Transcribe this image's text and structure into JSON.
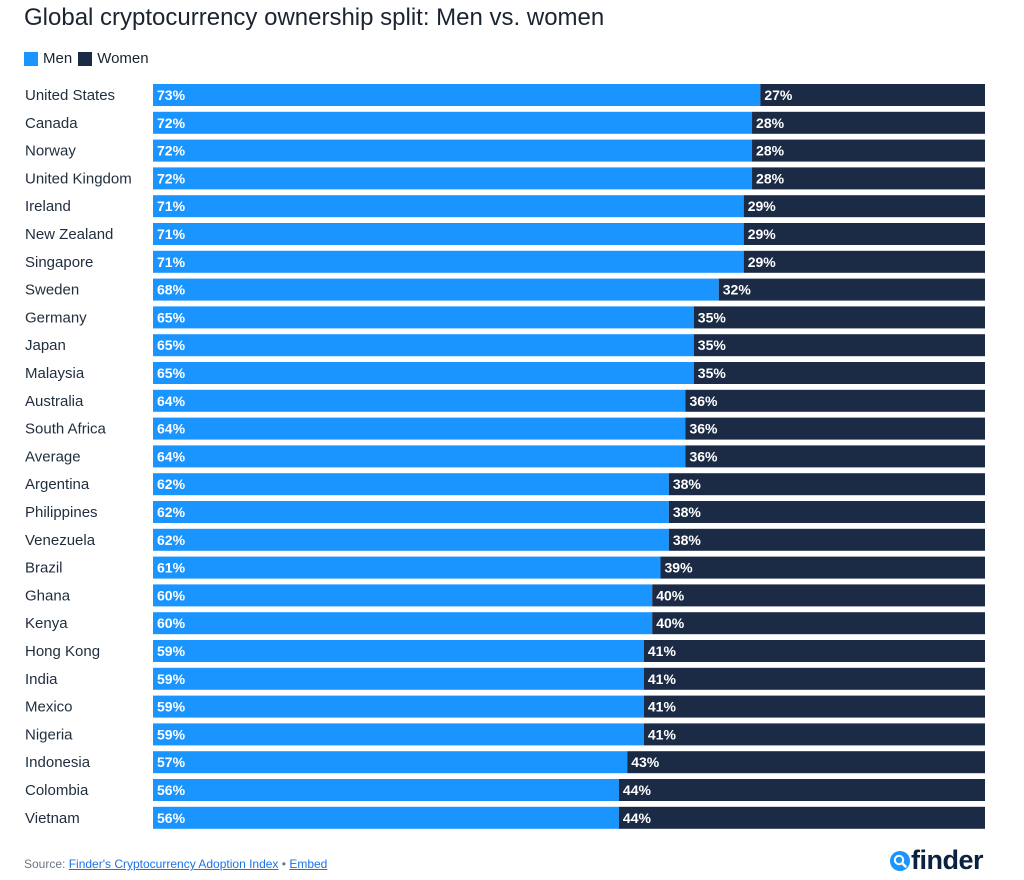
{
  "colors": {
    "men": "#1a94ff",
    "women": "#1b2b45"
  },
  "chart_data": {
    "type": "bar",
    "orientation": "horizontal",
    "stacked": true,
    "title": "Global cryptocurrency ownership split: Men vs. women",
    "legend_position": "top-left",
    "unit": "%",
    "categories": [
      "United States",
      "Canada",
      "Norway",
      "United Kingdom",
      "Ireland",
      "New Zealand",
      "Singapore",
      "Sweden",
      "Germany",
      "Japan",
      "Malaysia",
      "Australia",
      "South Africa",
      "Average",
      "Argentina",
      "Philippines",
      "Venezuela",
      "Brazil",
      "Ghana",
      "Kenya",
      "Hong Kong",
      "India",
      "Mexico",
      "Nigeria",
      "Indonesia",
      "Colombia",
      "Vietnam"
    ],
    "series": [
      {
        "name": "Men",
        "values": [
          73,
          72,
          72,
          72,
          71,
          71,
          71,
          68,
          65,
          65,
          65,
          64,
          64,
          64,
          62,
          62,
          62,
          61,
          60,
          60,
          59,
          59,
          59,
          59,
          57,
          56,
          56
        ]
      },
      {
        "name": "Women",
        "values": [
          27,
          28,
          28,
          28,
          29,
          29,
          29,
          32,
          35,
          35,
          35,
          36,
          36,
          36,
          38,
          38,
          38,
          39,
          40,
          40,
          41,
          41,
          41,
          41,
          43,
          44,
          44
        ]
      }
    ]
  },
  "footer": {
    "source_prefix": "Source: ",
    "source_link": "Finder's Cryptocurrency Adoption Index",
    "separator": " • ",
    "embed_link": "Embed"
  },
  "logo": {
    "text": "finder",
    "icon": "magnifier-icon"
  }
}
